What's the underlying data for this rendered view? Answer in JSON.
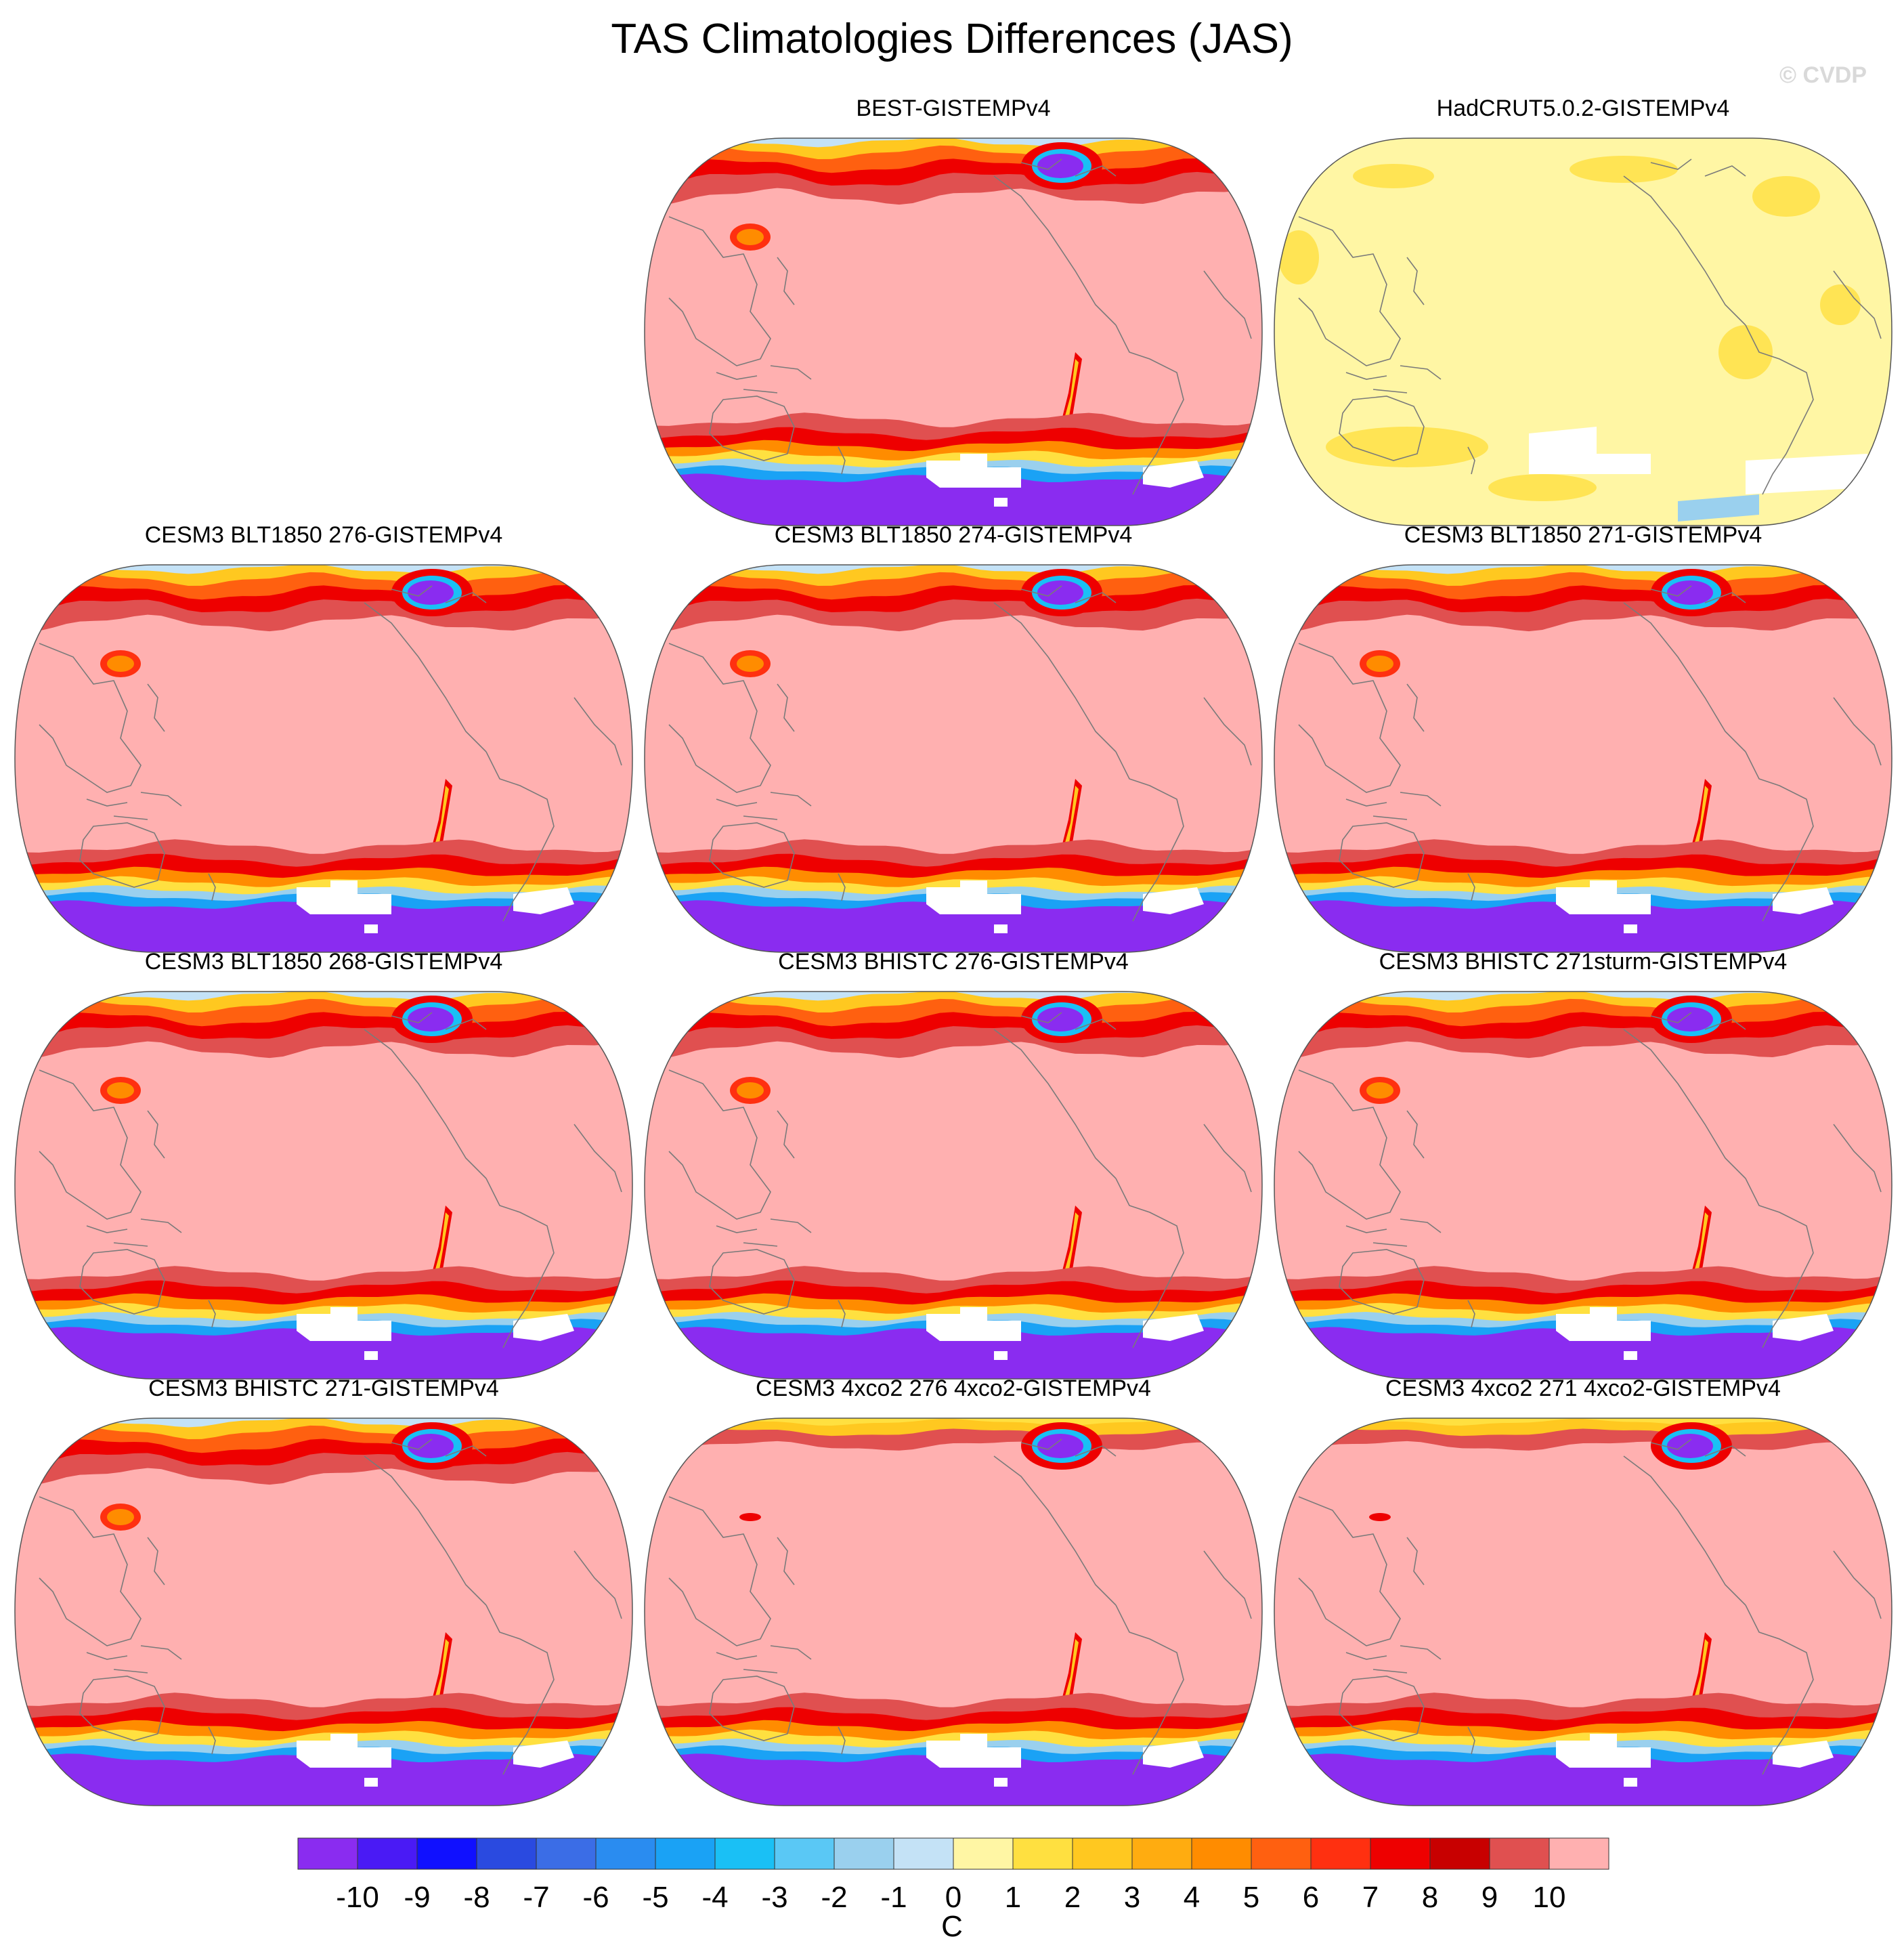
{
  "title": "TAS Climatologies Differences (JAS)",
  "watermark": "© CVDP",
  "colors": {
    "land_outline": "#7a7a7a",
    "map_border": "#555555"
  },
  "chart_data": {
    "type": "heatmap",
    "title": "TAS Climatologies Differences (JAS)",
    "projection": "Robinson (Pacific centred)",
    "panels": [
      {
        "name": "BEST-GISTEMPv4",
        "row": 0,
        "col": 1,
        "pattern": "best"
      },
      {
        "name": "HadCRUT5.0.2-GISTEMPv4",
        "row": 0,
        "col": 2,
        "pattern": "hadcrut"
      },
      {
        "name": "CESM3 BLT1850 276-GISTEMPv4",
        "row": 1,
        "col": 0,
        "pattern": "model"
      },
      {
        "name": "CESM3 BLT1850 274-GISTEMPv4",
        "row": 1,
        "col": 1,
        "pattern": "model"
      },
      {
        "name": "CESM3 BLT1850 271-GISTEMPv4",
        "row": 1,
        "col": 2,
        "pattern": "model"
      },
      {
        "name": "CESM3 BLT1850 268-GISTEMPv4",
        "row": 2,
        "col": 0,
        "pattern": "model"
      },
      {
        "name": "CESM3 BHISTC 276-GISTEMPv4",
        "row": 2,
        "col": 1,
        "pattern": "model"
      },
      {
        "name": "CESM3 BHISTC 271sturm-GISTEMPv4",
        "row": 2,
        "col": 2,
        "pattern": "model"
      },
      {
        "name": "CESM3 BHISTC 271-GISTEMPv4",
        "row": 3,
        "col": 0,
        "pattern": "model"
      },
      {
        "name": "CESM3 4xco2 276 4xco2-GISTEMPv4",
        "row": 3,
        "col": 1,
        "pattern": "co2"
      },
      {
        "name": "CESM3 4xco2 271 4xco2-GISTEMPv4",
        "row": 3,
        "col": 2,
        "pattern": "co2"
      }
    ],
    "colorbar": {
      "levels": [
        -10,
        -9,
        -8,
        -7,
        -6,
        -5,
        -4,
        -3,
        -2,
        -1,
        0,
        1,
        2,
        3,
        4,
        5,
        6,
        7,
        8,
        9,
        10
      ],
      "colors": [
        "#8a2cf0",
        "#4a1af5",
        "#1010ff",
        "#2a4ae0",
        "#3b6de6",
        "#2a8cf0",
        "#1aa2f5",
        "#1ac0f5",
        "#5ac8f5",
        "#9ad0ee",
        "#c4e2f6",
        "#fff6a4",
        "#ffe040",
        "#ffc820",
        "#ffac10",
        "#ff8c00",
        "#ff6010",
        "#ff3010",
        "#ee0000",
        "#c80000",
        "#e05050",
        "#ffb0b0"
      ],
      "unit": "C"
    }
  }
}
